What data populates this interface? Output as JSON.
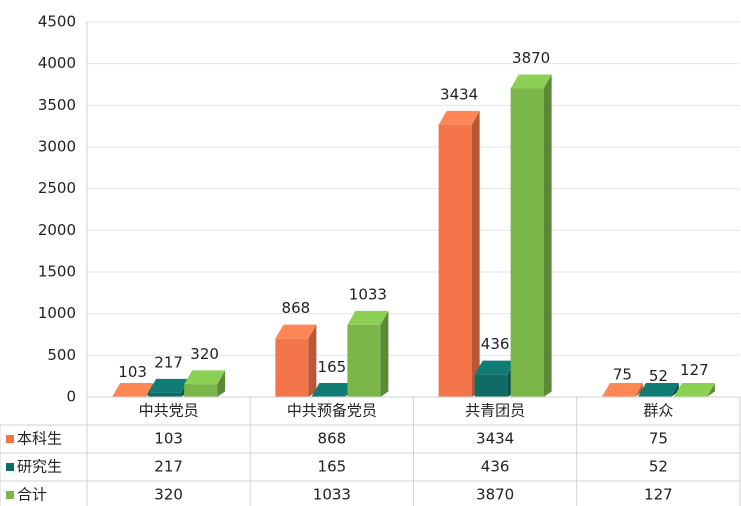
{
  "chart_data": {
    "type": "bar3d",
    "categories": [
      "中共党员",
      "中共预备党员",
      "共青团员",
      "群众"
    ],
    "series": [
      {
        "name": "本科生",
        "color": "#f4754a",
        "values": [
          103,
          868,
          3434,
          75
        ]
      },
      {
        "name": "研究生",
        "color": "#0f6b66",
        "values": [
          217,
          165,
          436,
          52
        ]
      },
      {
        "name": "合计",
        "color": "#7ab648",
        "values": [
          320,
          1033,
          3870,
          127
        ]
      }
    ],
    "ylim": [
      0,
      4500
    ],
    "yticks": [
      0,
      500,
      1000,
      1500,
      2000,
      2500,
      3000,
      3500,
      4000,
      4500
    ],
    "grid": true,
    "data_table": true
  }
}
